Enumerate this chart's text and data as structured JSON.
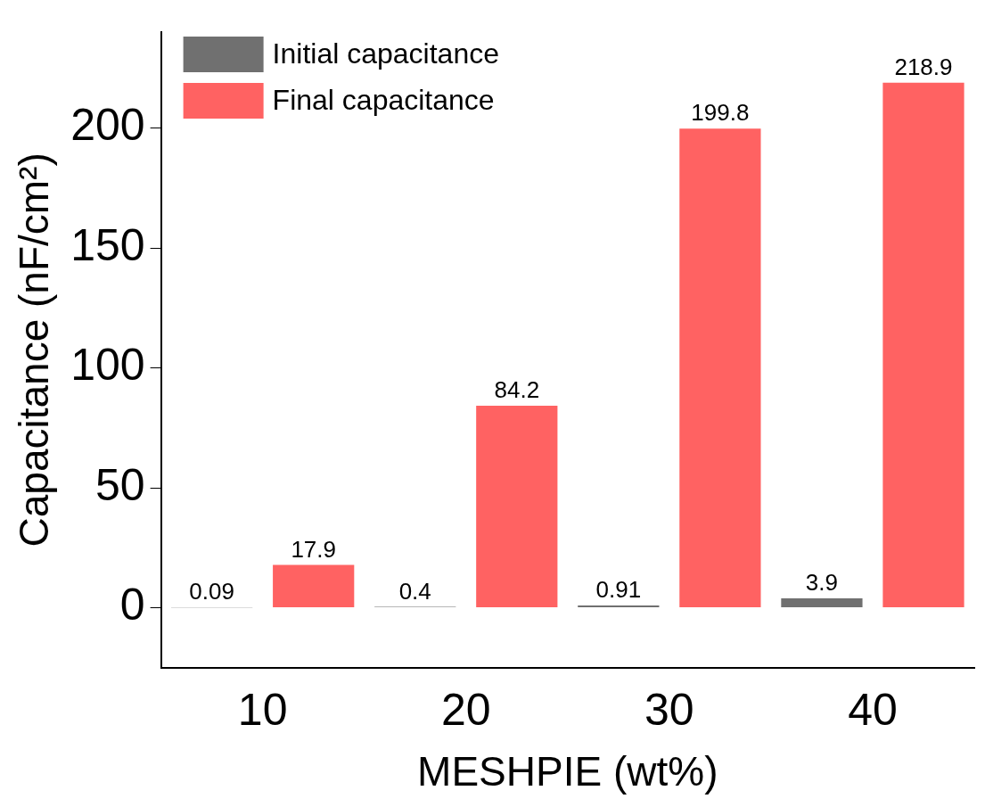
{
  "chart_data": {
    "type": "bar",
    "xlabel": "MESHPIE (wt%)",
    "ylabel": "Capacitance (nF/cm²)",
    "categories": [
      "10",
      "20",
      "30",
      "40"
    ],
    "series": [
      {
        "name": "Initial capacitance",
        "color": "#707070",
        "values": [
          0.09,
          0.4,
          0.91,
          3.9
        ]
      },
      {
        "name": "Final capacitance",
        "color": "#ff6262",
        "values": [
          17.9,
          84.2,
          199.8,
          218.9
        ]
      }
    ],
    "ylim": [
      -25,
      240
    ],
    "yticks": [
      0,
      50,
      100,
      150,
      200
    ],
    "grid": false,
    "legend": "top left",
    "data_labels": true
  }
}
